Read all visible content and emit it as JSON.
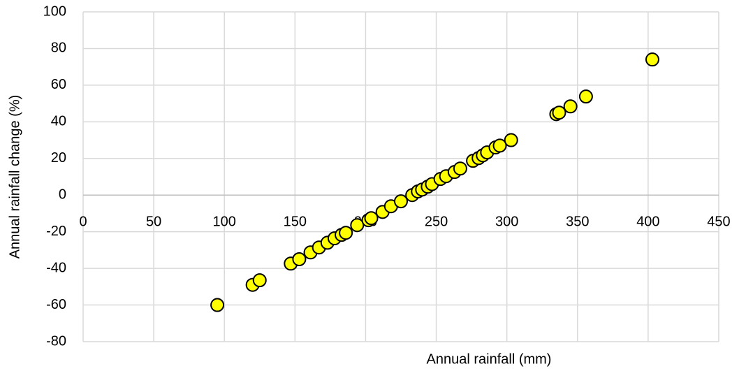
{
  "chart_data": {
    "type": "scatter",
    "x_label": "Annual rainfall (mm)",
    "y_label": "Annual rainfall change (%)",
    "xlim": [
      0,
      450
    ],
    "xticks": [
      0,
      50,
      100,
      150,
      200,
      250,
      300,
      350,
      400,
      450
    ],
    "ylim": [
      -80,
      100
    ],
    "yticks": [
      -80,
      -60,
      -40,
      -20,
      0,
      20,
      40,
      60,
      80,
      100
    ],
    "grid": true,
    "series": [
      {
        "color": "#ffff00",
        "x": [
          95,
          120,
          125,
          147,
          153,
          161,
          167,
          173,
          178,
          183,
          186,
          194,
          202,
          204,
          212,
          218,
          225,
          233,
          237,
          240,
          244,
          247,
          253,
          257,
          263,
          267,
          276,
          280,
          283,
          286,
          292,
          295,
          303,
          335,
          337,
          345,
          356,
          403
        ],
        "values": [
          -60,
          -49,
          -46.5,
          -37.4,
          -35,
          -31.3,
          -28.6,
          -26,
          -23.6,
          -21.7,
          -20.6,
          -16.4,
          -13.7,
          -12.6,
          -9.2,
          -6.1,
          -3.4,
          0,
          2,
          3,
          4.6,
          6,
          8.8,
          10.3,
          12.6,
          14.5,
          18.7,
          20.2,
          21.7,
          23.3,
          26,
          27,
          30,
          44.2,
          45,
          48.4,
          53.8,
          74
        ]
      }
    ]
  }
}
